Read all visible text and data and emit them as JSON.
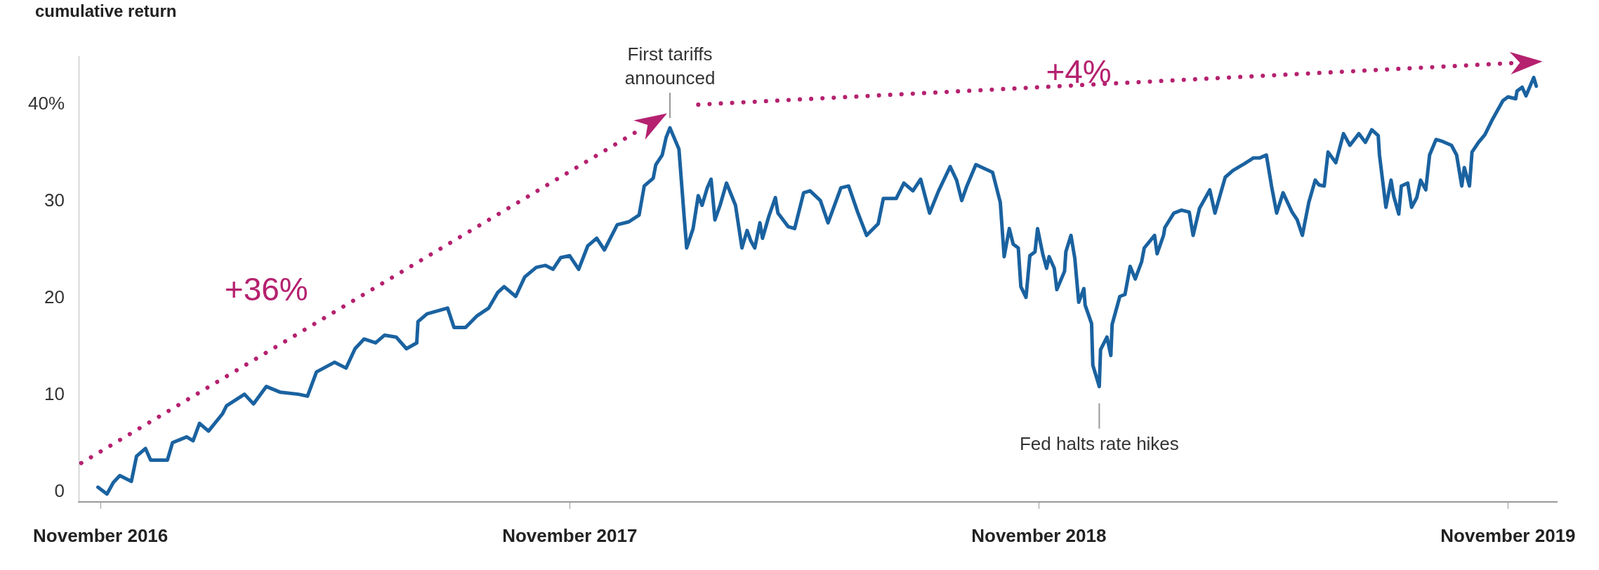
{
  "chart_data": {
    "type": "line",
    "title": "cumulative return",
    "marker": "none",
    "line_style": "solid",
    "grid": false,
    "legend": false,
    "x": [
      "2016-10-30",
      "2016-11-06",
      "2016-11-11",
      "2016-11-16",
      "2016-11-25",
      "2016-11-29",
      "2016-12-06",
      "2016-12-10",
      "2016-12-23",
      "2016-12-27",
      "2017-01-07",
      "2017-01-12",
      "2017-01-17",
      "2017-01-24",
      "2017-02-04",
      "2017-02-07",
      "2017-02-21",
      "2017-02-28",
      "2017-03-10",
      "2017-03-21",
      "2017-04-04",
      "2017-04-11",
      "2017-04-18",
      "2017-05-02",
      "2017-05-11",
      "2017-05-18",
      "2017-05-25",
      "2017-06-03",
      "2017-06-10",
      "2017-06-19",
      "2017-06-27",
      "2017-07-05",
      "2017-07-06",
      "2017-07-13",
      "2017-07-29",
      "2017-08-03",
      "2017-08-12",
      "2017-08-21",
      "2017-08-30",
      "2017-09-06",
      "2017-09-11",
      "2017-09-20",
      "2017-09-27",
      "2017-10-06",
      "2017-10-13",
      "2017-10-19",
      "2017-10-25",
      "2017-11-01",
      "2017-11-08",
      "2017-11-15",
      "2017-11-22",
      "2017-11-28",
      "2017-12-08",
      "2017-12-17",
      "2017-12-25",
      "2017-12-29",
      "2018-01-05",
      "2018-01-07",
      "2018-01-12",
      "2018-01-15",
      "2018-01-18",
      "2018-01-25",
      "2018-01-29",
      "2018-01-31",
      "2018-02-05",
      "2018-02-09",
      "2018-02-12",
      "2018-02-16",
      "2018-02-19",
      "2018-02-22",
      "2018-02-26",
      "2018-03-03",
      "2018-03-10",
      "2018-03-15",
      "2018-03-19",
      "2018-03-22",
      "2018-03-25",
      "2018-03-29",
      "2018-03-31",
      "2018-04-05",
      "2018-04-10",
      "2018-04-12",
      "2018-04-20",
      "2018-04-25",
      "2018-05-02",
      "2018-05-07",
      "2018-05-15",
      "2018-05-21",
      "2018-05-31",
      "2018-06-06",
      "2018-06-13",
      "2018-06-20",
      "2018-06-29",
      "2018-07-03",
      "2018-07-13",
      "2018-07-19",
      "2018-07-26",
      "2018-08-01",
      "2018-08-08",
      "2018-08-15",
      "2018-08-24",
      "2018-08-29",
      "2018-09-02",
      "2018-09-06",
      "2018-09-13",
      "2018-09-26",
      "2018-10-02",
      "2018-10-05",
      "2018-10-09",
      "2018-10-12",
      "2018-10-16",
      "2018-10-18",
      "2018-10-22",
      "2018-10-25",
      "2018-10-29",
      "2018-10-31",
      "2018-11-04",
      "2018-11-07",
      "2018-11-09",
      "2018-11-13",
      "2018-11-15",
      "2018-11-21",
      "2018-11-22",
      "2018-11-26",
      "2018-11-29",
      "2018-12-02",
      "2018-12-06",
      "2018-12-07",
      "2018-12-12",
      "2018-12-13",
      "2018-12-18",
      "2018-12-19",
      "2018-12-24",
      "2018-12-27",
      "2018-12-28",
      "2019-01-03",
      "2019-01-07",
      "2019-01-11",
      "2019-01-15",
      "2019-01-20",
      "2019-01-22",
      "2019-01-30",
      "2019-02-01",
      "2019-02-06",
      "2019-02-07",
      "2019-02-14",
      "2019-02-20",
      "2019-02-26",
      "2019-03-01",
      "2019-03-06",
      "2019-03-14",
      "2019-03-18",
      "2019-03-26",
      "2019-04-01",
      "2019-04-10",
      "2019-04-17",
      "2019-04-22",
      "2019-04-27",
      "2019-05-01",
      "2019-05-05",
      "2019-05-10",
      "2019-05-17",
      "2019-05-21",
      "2019-05-25",
      "2019-05-30",
      "2019-06-04",
      "2019-06-07",
      "2019-06-11",
      "2019-06-14",
      "2019-06-20",
      "2019-06-26",
      "2019-07-01",
      "2019-07-08",
      "2019-07-13",
      "2019-07-18",
      "2019-07-23",
      "2019-07-24",
      "2019-07-29",
      "2019-08-02",
      "2019-08-04",
      "2019-08-08",
      "2019-08-10",
      "2019-08-15",
      "2019-08-18",
      "2019-08-22",
      "2019-08-25",
      "2019-08-29",
      "2019-09-01",
      "2019-09-06",
      "2019-09-11",
      "2019-09-18",
      "2019-09-22",
      "2019-09-26",
      "2019-09-28",
      "2019-10-02",
      "2019-10-04",
      "2019-10-09",
      "2019-10-14",
      "2019-10-20",
      "2019-10-28",
      "2019-11-01",
      "2019-11-07",
      "2019-11-08",
      "2019-11-12",
      "2019-11-15",
      "2019-11-21",
      "2019-11-23"
    ],
    "series": [
      {
        "type": "line",
        "x": [
          "2016-10-17",
          "2017-12-28"
        ],
        "values": [
          3.0,
          37.6
        ],
        "color": "#b5216f",
        "line_style": "dotted"
      },
      {
        "type": "line",
        "x": [
          "2018-02-09",
          "2019-11-06"
        ],
        "values": [
          40.0,
          44.3
        ],
        "color": "#b5216f",
        "line_style": "dotted"
      },
      {
        "color": "#1a62a0",
        "values": [
          0.5,
          -0.2,
          1.0,
          1.7,
          1.1,
          3.7,
          4.5,
          3.3,
          3.3,
          5.1,
          5.7,
          5.3,
          7.1,
          6.3,
          8.1,
          8.9,
          10.1,
          9.1,
          10.9,
          10.3,
          10.1,
          9.9,
          12.4,
          13.4,
          12.8,
          14.8,
          15.8,
          15.4,
          16.2,
          16.0,
          14.8,
          15.4,
          17.6,
          18.4,
          19.0,
          17.0,
          17.0,
          18.2,
          19.0,
          20.6,
          21.2,
          20.2,
          22.2,
          23.2,
          23.4,
          23.0,
          24.2,
          24.4,
          23.0,
          25.4,
          26.2,
          25.0,
          27.6,
          27.9,
          28.6,
          31.6,
          32.4,
          33.8,
          34.8,
          36.6,
          37.6,
          35.4,
          28.5,
          25.2,
          27.2,
          30.6,
          29.6,
          31.4,
          32.3,
          28.1,
          29.6,
          31.9,
          29.6,
          25.2,
          27.0,
          25.9,
          25.2,
          27.8,
          26.2,
          28.5,
          30.4,
          28.8,
          27.4,
          27.2,
          30.9,
          31.1,
          30.1,
          27.8,
          31.4,
          31.6,
          28.9,
          26.5,
          27.7,
          30.3,
          30.3,
          31.9,
          31.1,
          32.3,
          28.8,
          31.1,
          33.6,
          32.2,
          30.1,
          31.6,
          33.8,
          33.0,
          29.9,
          24.3,
          27.2,
          25.6,
          25.2,
          21.2,
          20.1,
          24.4,
          24.8,
          27.2,
          24.6,
          23.1,
          24.3,
          23.1,
          20.9,
          22.8,
          24.8,
          26.5,
          24.1,
          19.6,
          21.0,
          19.3,
          17.4,
          13.1,
          10.9,
          14.7,
          16.0,
          14.1,
          17.3,
          20.2,
          20.4,
          23.3,
          22.0,
          23.8,
          25.2,
          26.5,
          24.6,
          26.5,
          27.3,
          28.8,
          29.1,
          28.9,
          26.5,
          29.3,
          31.2,
          28.8,
          32.5,
          33.2,
          33.9,
          34.5,
          34.5,
          34.8,
          31.6,
          28.8,
          30.9,
          28.9,
          28.1,
          26.5,
          29.9,
          32.2,
          31.7,
          31.6,
          35.1,
          34.0,
          37.0,
          35.8,
          37.0,
          36.1,
          37.4,
          36.8,
          34.8,
          29.4,
          32.2,
          30.6,
          28.7,
          31.6,
          31.9,
          29.4,
          30.4,
          32.2,
          31.2,
          34.8,
          36.4,
          36.2,
          35.8,
          34.8,
          31.6,
          33.5,
          31.6,
          35.1,
          36.1,
          36.9,
          38.5,
          40.4,
          40.8,
          40.6,
          41.4,
          41.8,
          40.9,
          42.8,
          41.9
        ]
      }
    ],
    "xlim": [
      "2016-10-15",
      "2019-12-09"
    ],
    "xticks": [
      {
        "value": "2016-11-01",
        "label": "November 2016"
      },
      {
        "value": "2017-11-01",
        "label": "November 2017"
      },
      {
        "value": "2018-11-01",
        "label": "November 2018"
      },
      {
        "value": "2019-11-01",
        "label": "November 2019"
      }
    ],
    "ylim": [
      -1,
      45
    ],
    "yticks": [
      0,
      10,
      20,
      30,
      {
        "value": 40,
        "label": "40%"
      }
    ],
    "annotations": [
      {
        "text": "First tariffs announced",
        "x": "2018-01-18",
        "y": 37.6
      },
      {
        "text": "Fed halts rate hikes",
        "x": "2018-12-18",
        "y": 10.9
      },
      "+36%",
      "+4%"
    ]
  }
}
